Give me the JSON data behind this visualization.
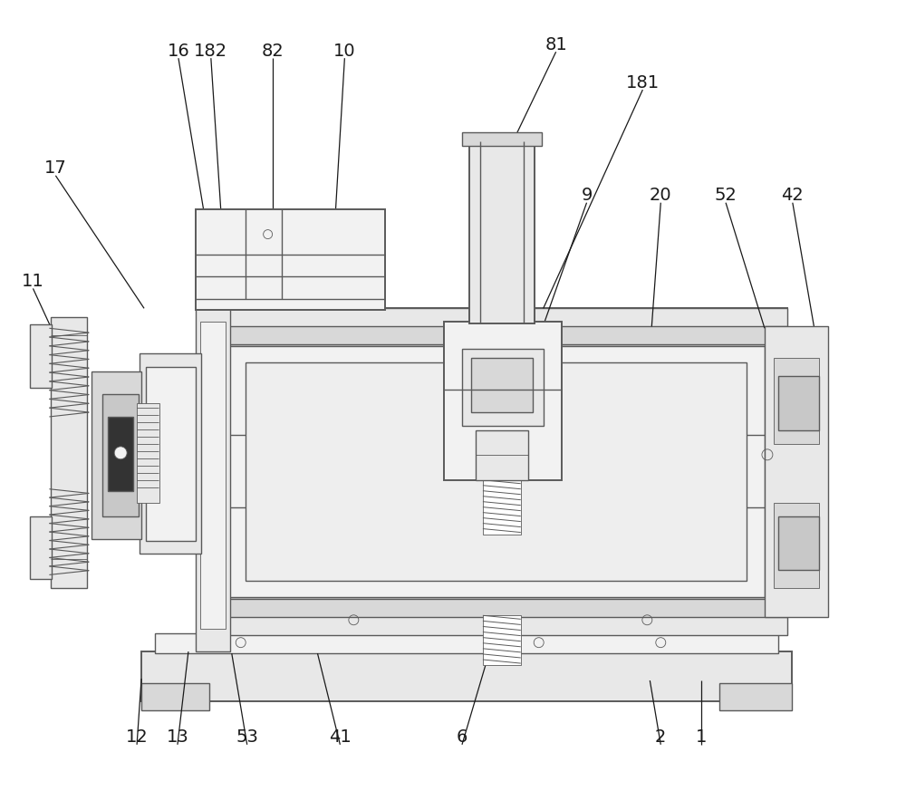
{
  "bg_color": "#ffffff",
  "lc": "#5a5a5a",
  "lw": 1.0,
  "tlw": 0.6,
  "thw": 1.4,
  "fig_width": 10.0,
  "fig_height": 8.94,
  "label_fontsize": 14,
  "ann_color": "#1a1a1a",
  "gray1": "#f2f2f2",
  "gray2": "#e8e8e8",
  "gray3": "#d8d8d8",
  "gray4": "#c8c8c8",
  "gray5": "#b0b0b0",
  "green_tint": "#e8f0e8",
  "purple_tint": "#f0e8f0"
}
